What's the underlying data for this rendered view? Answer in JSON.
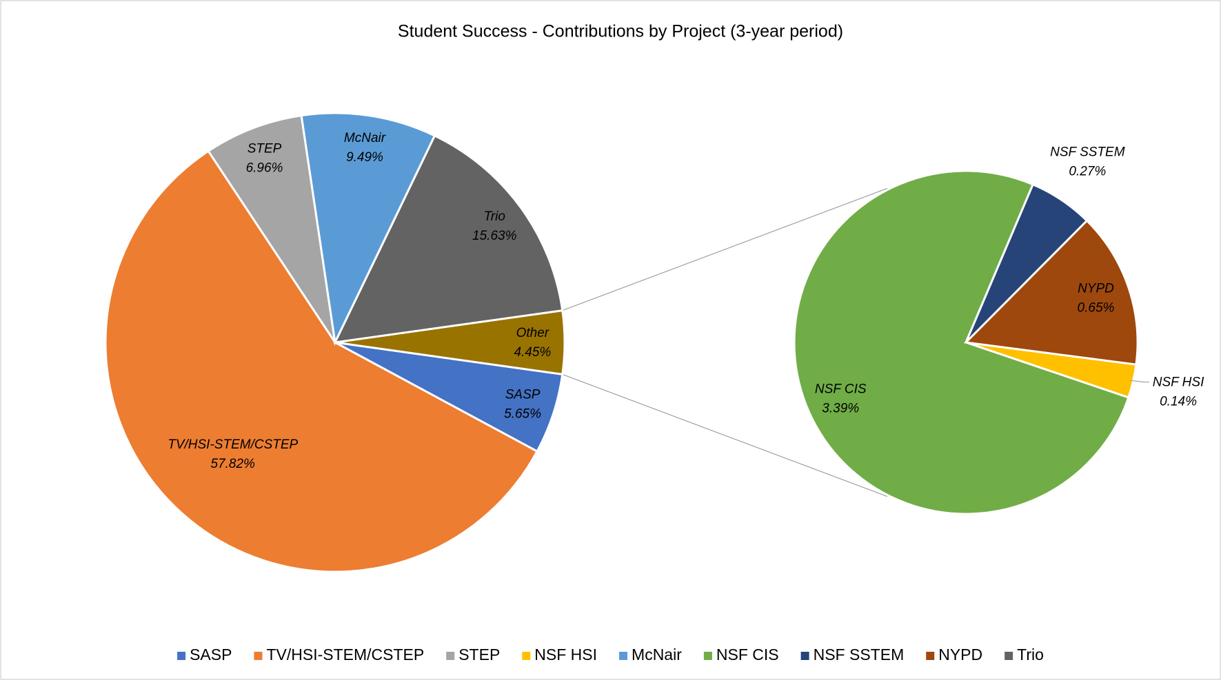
{
  "chart_data": {
    "type": "pie_of_pie",
    "title": "Student Success - Contributions by Project (3-year period)",
    "categories": [
      "SASP",
      "TV/HSI-STEM/CSTEP",
      "STEP",
      "NSF HSI",
      "McNair",
      "NSF CIS",
      "NSF SSTEM",
      "NYPD",
      "Trio"
    ],
    "values": [
      5.65,
      57.82,
      6.96,
      0.14,
      9.49,
      3.39,
      0.27,
      0.65,
      15.63
    ],
    "value_labels": [
      "5.65%",
      "57.82%",
      "6.96%",
      "0.14%",
      "9.49%",
      "3.39%",
      "0.27%",
      "0.65%",
      "15.63%"
    ],
    "colors": [
      "#4472c4",
      "#ed7d31",
      "#a5a5a5",
      "#ffc000",
      "#5b9bd5",
      "#70ad47",
      "#264478",
      "#9e480e",
      "#636363"
    ],
    "plot": [
      "main",
      "main",
      "main",
      "secondary",
      "main",
      "secondary",
      "secondary",
      "secondary",
      "main"
    ],
    "other": {
      "name": "Other",
      "value": 4.45,
      "value_label": "4.45%",
      "color": "#997300"
    },
    "legend": "bottom"
  }
}
